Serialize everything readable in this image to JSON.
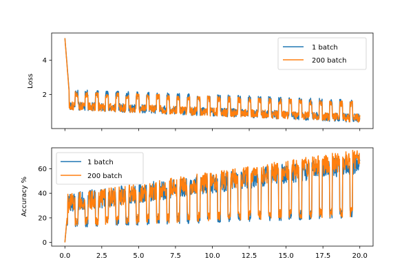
{
  "chart_data": [
    {
      "type": "line",
      "ylabel": "Loss",
      "xlabel": "",
      "xlim": [
        -0.9,
        20.9
      ],
      "ylim": [
        0.0,
        5.6
      ],
      "xticks": [
        0.0,
        2.5,
        5.0,
        7.5,
        10.0,
        12.5,
        15.0,
        17.5,
        20.0
      ],
      "xticklabels_visible": false,
      "yticks": [
        2,
        4
      ],
      "yticklabels": [
        "2",
        "4"
      ],
      "legend": {
        "position": "upper right",
        "entries": [
          "1 batch",
          "200 batch"
        ]
      },
      "grid": false,
      "series": [
        {
          "name": "1 batch",
          "color": "#1f77b4",
          "start": 5.3,
          "floor_start": 1.2,
          "floor_end": 0.45,
          "spike_start": 2.1,
          "spike_end": 1.5
        },
        {
          "name": "200 batch",
          "color": "#ff7f0e",
          "start": 5.3,
          "floor_start": 1.2,
          "floor_end": 0.45,
          "spike_start": 2.0,
          "spike_end": 1.4
        }
      ]
    },
    {
      "type": "line",
      "ylabel": "Accuracy %",
      "xlabel": "",
      "xlim": [
        -0.9,
        20.9
      ],
      "ylim": [
        -3,
        77
      ],
      "xticks": [
        0.0,
        2.5,
        5.0,
        7.5,
        10.0,
        12.5,
        15.0,
        17.5,
        20.0
      ],
      "xticklabels": [
        "0.0",
        "2.5",
        "5.0",
        "7.5",
        "10.0",
        "12.5",
        "15.0",
        "17.5",
        "20.0"
      ],
      "yticks": [
        0,
        20,
        40,
        60
      ],
      "yticklabels": [
        "0",
        "20",
        "40",
        "60"
      ],
      "legend": {
        "position": "upper left",
        "entries": [
          "1 batch",
          "200 batch"
        ]
      },
      "grid": false,
      "series": [
        {
          "name": "1 batch",
          "color": "#1f77b4",
          "start": 0,
          "dip_start": 12,
          "dip_end": 20,
          "peak_start": 38,
          "peak_end": 70
        },
        {
          "name": "200 batch",
          "color": "#ff7f0e",
          "start": 0,
          "dip_start": 13,
          "dip_end": 21,
          "peak_start": 37,
          "peak_end": 74
        }
      ]
    }
  ]
}
